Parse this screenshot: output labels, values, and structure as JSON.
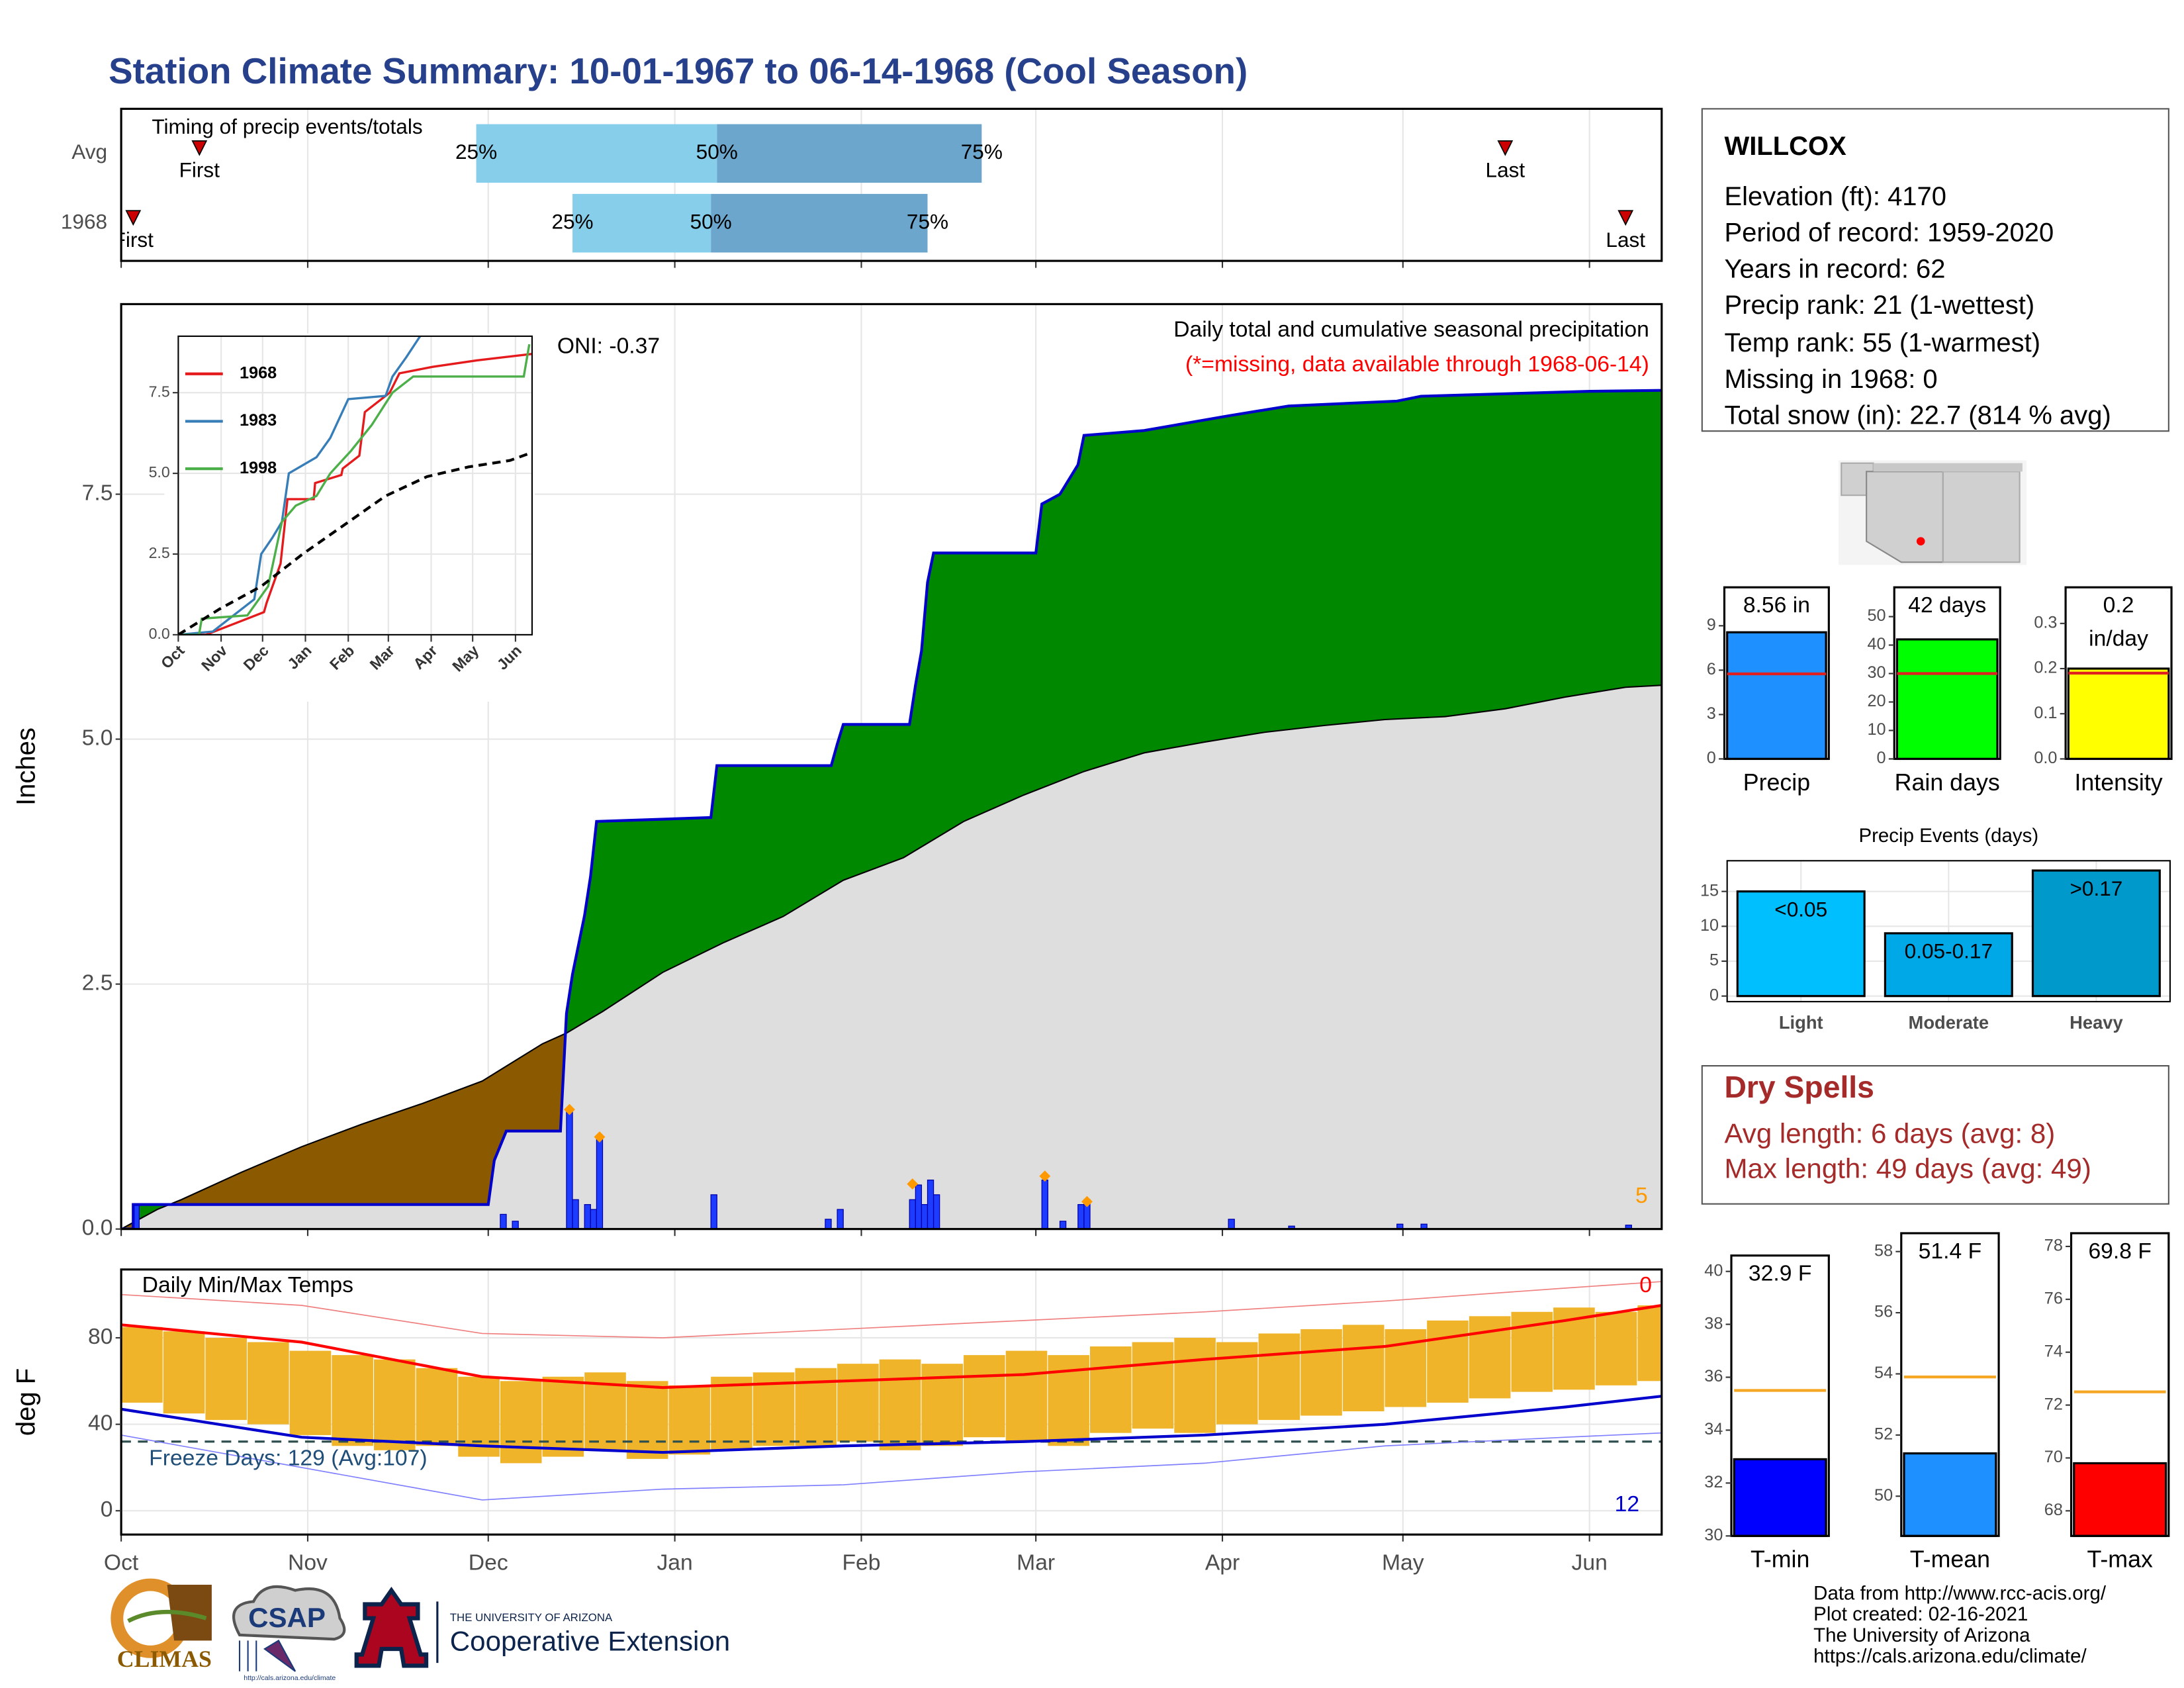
{
  "title": "Station Climate Summary: 10-01-1967 to 06-14-1968 (Cool Season)",
  "station": {
    "name": "WILLCOX",
    "lines": [
      "Elevation (ft): 4170",
      "Period of record: 1959-2020",
      "Years in record: 62",
      "Precip rank: 21 (1-wettest)",
      "Temp rank: 55 (1-warmest)",
      "Missing in 1968: 0",
      "Total snow (in): 22.7 (814 % avg)"
    ]
  },
  "dry_spells": {
    "title": "Dry Spells",
    "lines": [
      "Avg length: 6 days (avg: 8)",
      "Max length: 49 days (avg: 49)"
    ]
  },
  "footer": [
    "Data from http://www.rcc-acis.org/",
    "Plot created: 02-16-2021",
    "The University of Arizona",
    "https://cals.arizona.edu/climate/"
  ],
  "logos": {
    "climas": "CLIMAS",
    "csap": "CSAP",
    "csap_url": "http://cals.arizona.edu/climate",
    "university": "THE UNIVERSITY OF ARIZONA",
    "extension": "Cooperative Extension"
  },
  "chart_data": [
    {
      "type": "timing",
      "title": "Timing of precip events/totals",
      "categories": [
        "Avg",
        "1968"
      ],
      "first": [
        13,
        2
      ],
      "q25": [
        59,
        75
      ],
      "q50": [
        99,
        98
      ],
      "q75": [
        143,
        134
      ],
      "last": [
        230,
        250
      ],
      "first_label": "First",
      "last_label": "Last",
      "quartile_labels": [
        "25%",
        "50%",
        "75%"
      ],
      "colors": [
        "#87ceeb",
        "#6ca6cd"
      ],
      "marker_color": "#cc0000",
      "xlim": [
        0,
        256
      ],
      "xticks": [
        0,
        31,
        61,
        92,
        123,
        152,
        183,
        213,
        244
      ],
      "grid": true
    },
    {
      "type": "cumulative",
      "title": "Daily total and cumulative seasonal precipitation",
      "subtitle": "(*=missing, data available through 1968-06-14)",
      "annotation": "ONI: -0.37",
      "corner_value": 5,
      "ylabel": "Inches",
      "xlim": [
        0,
        256
      ],
      "xticks": [
        0,
        31,
        61,
        92,
        123,
        152,
        183,
        213,
        244
      ],
      "ylim": [
        0,
        9.44
      ],
      "yticks": [
        {
          "value": 0,
          "label": "0.0"
        },
        2.5,
        {
          "value": 5,
          "label": "5.0"
        },
        7.5
      ],
      "grid": true,
      "observed": {
        "color": "#0000cd",
        "x": [
          0,
          2,
          2,
          61,
          62,
          64,
          73,
          74,
          75,
          77,
          78,
          79,
          98,
          99,
          118,
          119,
          120,
          131,
          132,
          133,
          134,
          135,
          152,
          153,
          156,
          159,
          160,
          170,
          184,
          194,
          212,
          216,
          244,
          256
        ],
        "values": [
          0,
          0,
          0.25,
          0.25,
          0.7,
          1.0,
          1.0,
          2.2,
          2.6,
          3.2,
          3.6,
          4.16,
          4.2,
          4.73,
          4.73,
          4.95,
          5.15,
          5.15,
          5.55,
          5.9,
          6.6,
          6.9,
          6.9,
          7.4,
          7.5,
          7.8,
          8.1,
          8.15,
          8.3,
          8.4,
          8.45,
          8.5,
          8.55,
          8.56
        ]
      },
      "average": {
        "color": "#dedede",
        "x": [
          0,
          6,
          10,
          20,
          30,
          40,
          50,
          60,
          70,
          74,
          80,
          90,
          100,
          110,
          120,
          130,
          140,
          150,
          160,
          170,
          180,
          190,
          200,
          210,
          220,
          230,
          240,
          250,
          256
        ],
        "values": [
          0,
          0.2,
          0.3,
          0.58,
          0.84,
          1.07,
          1.28,
          1.51,
          1.89,
          2.0,
          2.22,
          2.62,
          2.92,
          3.19,
          3.56,
          3.79,
          4.16,
          4.43,
          4.67,
          4.86,
          4.97,
          5.07,
          5.14,
          5.2,
          5.23,
          5.31,
          5.43,
          5.53,
          5.55
        ]
      },
      "above_color": "#008800",
      "below_color": "#8b5a00",
      "daily": {
        "color": "#1e3cff",
        "x": [
          2,
          63,
          65,
          74,
          75,
          77,
          78,
          79,
          98,
          117,
          119,
          131,
          132,
          133,
          134,
          135,
          153,
          156,
          159,
          160,
          184,
          194,
          212,
          216,
          250
        ],
        "values": [
          0.25,
          0.15,
          0.08,
          1.22,
          0.3,
          0.25,
          0.2,
          0.94,
          0.35,
          0.1,
          0.2,
          0.3,
          0.45,
          0.25,
          0.5,
          0.35,
          0.5,
          0.08,
          0.25,
          0.3,
          0.1,
          0.03,
          0.05,
          0.05,
          0.04
        ]
      },
      "markers": {
        "color": "#ff9900",
        "x": [
          74,
          79,
          131,
          153,
          160
        ],
        "values": [
          1.22,
          0.94,
          0.46,
          0.54,
          0.28
        ]
      }
    },
    {
      "type": "line",
      "xlim": [
        0,
        256
      ],
      "xticks": [
        {
          "value": 0,
          "label": "Oct"
        },
        {
          "value": 31,
          "label": "Nov"
        },
        {
          "value": 61,
          "label": "Dec"
        },
        {
          "value": 92,
          "label": "Jan"
        },
        {
          "value": 123,
          "label": "Feb"
        },
        {
          "value": 152,
          "label": "Mar"
        },
        {
          "value": 183,
          "label": "Apr"
        },
        {
          "value": 213,
          "label": "May"
        },
        {
          "value": 244,
          "label": "Jun"
        }
      ],
      "ylim": [
        0,
        9.25
      ],
      "yticks": [
        {
          "value": 0,
          "label": "0.0"
        },
        2.5,
        {
          "value": 5,
          "label": "5.0"
        },
        7.5
      ],
      "grid": true,
      "series": [
        {
          "name": "1968",
          "color": "#e41a1c",
          "x": [
            0,
            20,
            62,
            64,
            74,
            79,
            98,
            99,
            118,
            119,
            131,
            135,
            153,
            160,
            184,
            216,
            256
          ],
          "values": [
            0,
            0,
            0.7,
            1.0,
            2.2,
            4.2,
            4.2,
            4.7,
            4.95,
            5.15,
            5.55,
            6.9,
            7.5,
            8.1,
            8.3,
            8.5,
            8.7
          ]
        },
        {
          "name": "1983",
          "color": "#377eb8",
          "x": [
            0,
            25,
            55,
            60,
            68,
            75,
            80,
            100,
            110,
            123,
            150,
            155,
            165,
            175
          ],
          "values": [
            0,
            0.1,
            1.1,
            2.5,
            3.0,
            3.5,
            5.0,
            5.5,
            6.1,
            7.3,
            7.4,
            8.0,
            8.6,
            9.25
          ]
        },
        {
          "name": "1998",
          "color": "#4daf4a",
          "x": [
            0,
            15,
            17,
            50,
            65,
            75,
            85,
            100,
            110,
            125,
            140,
            155,
            170,
            250,
            254
          ],
          "values": [
            0,
            0,
            0.5,
            0.6,
            1.5,
            3.5,
            4.0,
            4.3,
            5.0,
            5.7,
            6.5,
            7.5,
            8.0,
            8.0,
            9.0
          ]
        },
        {
          "color": "#000000",
          "dash": true,
          "x": [
            0,
            30,
            60,
            90,
            120,
            150,
            180,
            210,
            240,
            256
          ],
          "values": [
            0,
            0.8,
            1.5,
            2.5,
            3.4,
            4.3,
            4.9,
            5.2,
            5.4,
            5.65
          ]
        }
      ]
    },
    {
      "type": "temperature",
      "title": "Daily Min/Max Temps",
      "annotation": "Freeze Days: 129 (Avg:107)",
      "high_count": 0,
      "low_count": 12,
      "ylabel": "deg F",
      "xlim": [
        0,
        256
      ],
      "xticks": [
        {
          "value": 0,
          "label": "Oct"
        },
        {
          "value": 31,
          "label": "Nov"
        },
        {
          "value": 61,
          "label": "Dec"
        },
        {
          "value": 92,
          "label": "Jan"
        },
        {
          "value": 123,
          "label": "Feb"
        },
        {
          "value": 152,
          "label": "Mar"
        },
        {
          "value": 183,
          "label": "Apr"
        },
        {
          "value": 213,
          "label": "May"
        },
        {
          "value": 244,
          "label": "Jun"
        }
      ],
      "ylim": [
        -11,
        111.6
      ],
      "yticks": [
        0,
        40,
        80
      ],
      "grid": true,
      "freeze": 32,
      "freeze_color": "#2f4f4f",
      "bar_color": "#efb42a",
      "x": [
        0,
        7,
        14,
        21,
        28,
        35,
        42,
        49,
        56,
        63,
        70,
        77,
        84,
        91,
        98,
        105,
        112,
        119,
        126,
        133,
        140,
        147,
        154,
        161,
        168,
        175,
        182,
        189,
        196,
        203,
        210,
        217,
        224,
        231,
        238,
        245,
        252
      ],
      "max": [
        85,
        83,
        80,
        78,
        74,
        72,
        70,
        66,
        62,
        60,
        62,
        64,
        60,
        58,
        62,
        64,
        66,
        68,
        70,
        68,
        72,
        74,
        72,
        76,
        78,
        80,
        78,
        82,
        84,
        86,
        84,
        88,
        90,
        92,
        94,
        92,
        95
      ],
      "min": [
        50,
        45,
        42,
        40,
        35,
        30,
        28,
        30,
        25,
        22,
        25,
        28,
        24,
        26,
        28,
        30,
        30,
        32,
        28,
        30,
        34,
        32,
        30,
        36,
        38,
        36,
        40,
        42,
        44,
        46,
        48,
        50,
        52,
        55,
        56,
        58,
        60
      ],
      "series": [
        {
          "color": "#f08080",
          "width": 0.8,
          "x": [
            0,
            30,
            60,
            90,
            120,
            150,
            180,
            210,
            240,
            256
          ],
          "values": [
            100,
            95,
            82,
            80,
            84,
            88,
            92,
            97,
            103,
            106
          ]
        },
        {
          "color": "#8080ff",
          "width": 0.8,
          "x": [
            0,
            30,
            60,
            90,
            120,
            150,
            180,
            210,
            240,
            256
          ],
          "values": [
            35,
            20,
            5,
            10,
            12,
            18,
            22,
            30,
            34,
            36
          ]
        },
        {
          "color": "#ff0000",
          "width": 2,
          "x": [
            0,
            30,
            60,
            90,
            120,
            150,
            180,
            210,
            240,
            256
          ],
          "values": [
            86,
            78,
            62,
            57,
            60,
            63,
            70,
            76,
            88,
            95
          ]
        },
        {
          "color": "#0000cd",
          "width": 2,
          "x": [
            0,
            30,
            60,
            90,
            120,
            150,
            180,
            210,
            240,
            256
          ],
          "values": [
            47,
            34,
            30,
            27,
            30,
            32,
            35,
            40,
            48,
            53
          ]
        }
      ]
    },
    {
      "type": "summary_bar",
      "categories": [
        "Precip"
      ],
      "values": [
        8.56
      ],
      "value_labels": [
        "8.56 in"
      ],
      "average": 5.75,
      "average_color": "#e02020",
      "color": "#1e90ff",
      "ylim": [
        0,
        11.6
      ],
      "yticks": [
        0,
        3,
        6,
        9
      ]
    },
    {
      "type": "summary_bar",
      "categories": [
        "Rain days"
      ],
      "values": [
        42
      ],
      "value_labels": [
        "42 days"
      ],
      "average": 30,
      "average_color": "#e02020",
      "color": "#00ff00",
      "ylim": [
        0,
        60.3
      ],
      "yticks": [
        0,
        10,
        20,
        30,
        40,
        50
      ]
    },
    {
      "type": "summary_bar",
      "categories": [
        "Intensity"
      ],
      "values": [
        0.2
      ],
      "value_labels": [
        "0.2 in/day"
      ],
      "average": 0.19,
      "average_color": "#e02020",
      "color": "#ffff00",
      "ylim": [
        0,
        0.38
      ],
      "yticks": [
        {
          "value": 0,
          "label": "0.0"
        },
        0.1,
        0.2,
        0.3
      ]
    },
    {
      "type": "bar",
      "title": "Precip Events (days)",
      "categories": [
        "Light",
        "Moderate",
        "Heavy"
      ],
      "values": [
        15,
        9,
        18
      ],
      "bar_labels": [
        "<0.05",
        "0.05-0.17",
        ">0.17"
      ],
      "colors": [
        "#00bfff",
        "#00a8e8",
        "#0099cc"
      ],
      "ylim": [
        -0.8,
        19.4
      ],
      "yticks": [
        0,
        5,
        10,
        15
      ],
      "grid": true
    },
    {
      "type": "summary_bar",
      "categories": [
        "T-min"
      ],
      "values": [
        32.9
      ],
      "value_labels": [
        "32.9 F"
      ],
      "average": 35.5,
      "average_color": "#f5a623",
      "color": "#0000ff",
      "ylim": [
        30,
        40.6
      ],
      "yticks": [
        30,
        32,
        34,
        36,
        38,
        40
      ]
    },
    {
      "type": "summary_bar",
      "categories": [
        "T-mean"
      ],
      "values": [
        51.4
      ],
      "value_labels": [
        "51.4 F"
      ],
      "average": 53.9,
      "average_color": "#f5a623",
      "color": "#1e90ff",
      "ylim": [
        48.7,
        58.6
      ],
      "yticks": [
        50,
        52,
        54,
        56,
        58
      ]
    },
    {
      "type": "summary_bar",
      "categories": [
        "T-max"
      ],
      "values": [
        69.8
      ],
      "value_labels": [
        "69.8 F"
      ],
      "average": 72.5,
      "average_color": "#f5a623",
      "color": "#ff0000",
      "ylim": [
        67.05,
        78.5
      ],
      "yticks": [
        68,
        70,
        72,
        74,
        76,
        78
      ]
    }
  ]
}
